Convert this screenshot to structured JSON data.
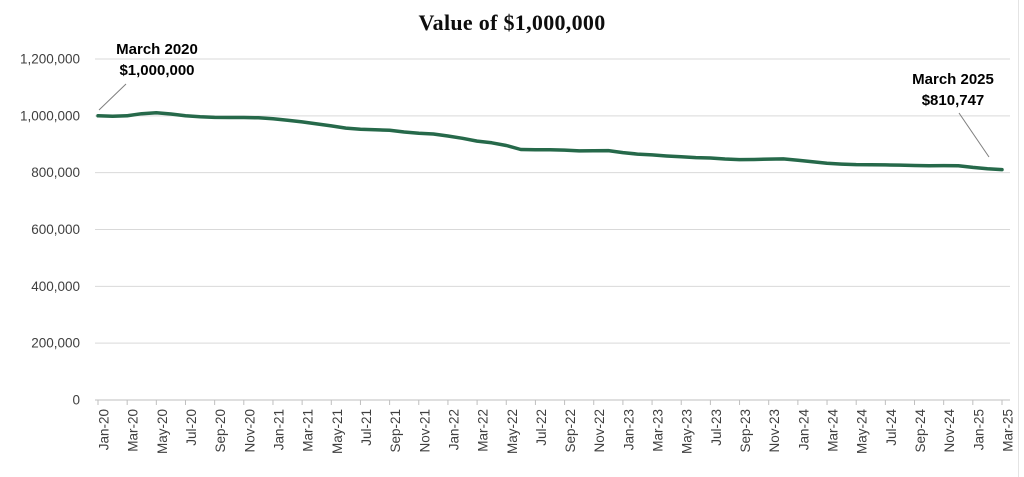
{
  "chart_data": {
    "type": "line",
    "title": "Value of $1,000,000",
    "x": [
      "Jan-20",
      "Feb-20",
      "Mar-20",
      "Apr-20",
      "May-20",
      "Jun-20",
      "Jul-20",
      "Aug-20",
      "Sep-20",
      "Oct-20",
      "Nov-20",
      "Dec-20",
      "Jan-21",
      "Feb-21",
      "Mar-21",
      "Apr-21",
      "May-21",
      "Jun-21",
      "Jul-21",
      "Aug-21",
      "Sep-21",
      "Oct-21",
      "Nov-21",
      "Dec-21",
      "Jan-22",
      "Feb-22",
      "Mar-22",
      "Apr-22",
      "May-22",
      "Jun-22",
      "Jul-22",
      "Aug-22",
      "Sep-22",
      "Oct-22",
      "Nov-22",
      "Dec-22",
      "Jan-23",
      "Feb-23",
      "Mar-23",
      "Apr-23",
      "May-23",
      "Jun-23",
      "Jul-23",
      "Aug-23",
      "Sep-23",
      "Oct-23",
      "Nov-23",
      "Dec-23",
      "Jan-24",
      "Feb-24",
      "Mar-24",
      "Apr-24",
      "May-24",
      "Jun-24",
      "Jul-24",
      "Aug-24",
      "Sep-24",
      "Oct-24",
      "Nov-24",
      "Dec-24",
      "Jan-25",
      "Feb-25",
      "Mar-25"
    ],
    "series": [
      {
        "name": "Value of $1,000,000",
        "color": "#26694A",
        "values": [
          1000000,
          998500,
          1000000,
          1007500,
          1011000,
          1006500,
          1000500,
          996500,
          994500,
          994000,
          994000,
          993000,
          989500,
          984500,
          978500,
          971500,
          964500,
          957000,
          953000,
          951000,
          949000,
          943000,
          938500,
          936000,
          929000,
          921000,
          911000,
          905000,
          895500,
          881500,
          880500,
          880800,
          879500,
          876500,
          877000,
          877500,
          870500,
          865500,
          862500,
          858500,
          856000,
          853000,
          851500,
          848000,
          846000,
          846200,
          847600,
          848400,
          843500,
          838500,
          833000,
          830000,
          828500,
          828200,
          827200,
          826600,
          825300,
          824400,
          824800,
          824500,
          818500,
          814000,
          810747
        ]
      }
    ],
    "x_tick_labels": [
      "Jan-20",
      "Mar-20",
      "May-20",
      "Jul-20",
      "Sep-20",
      "Nov-20",
      "Jan-21",
      "Mar-21",
      "May-21",
      "Jul-21",
      "Sep-21",
      "Nov-21",
      "Jan-22",
      "Mar-22",
      "May-22",
      "Jul-22",
      "Sep-22",
      "Nov-22",
      "Jan-23",
      "Mar-23",
      "May-23",
      "Jul-23",
      "Sep-23",
      "Nov-23",
      "Jan-24",
      "Mar-24",
      "May-24",
      "Jul-24",
      "Sep-24",
      "Nov-24",
      "Jan-25",
      "Mar-25"
    ],
    "y_ticks": [
      0,
      200000,
      400000,
      600000,
      800000,
      1000000,
      1200000
    ],
    "y_tick_labels": [
      "0",
      "200,000",
      "400,000",
      "600,000",
      "800,000",
      "1,000,000",
      "1,200,000"
    ],
    "ylim": [
      0,
      1200000
    ],
    "grid": "horizontal",
    "legend": "none",
    "annotations": [
      {
        "label": "March 2020",
        "value": "$1,000,000"
      },
      {
        "label": "March 2025",
        "value": "$810,747"
      }
    ]
  },
  "colors": {
    "line": "#26694A",
    "gridline": "#D9D9D9",
    "axis": "#BFBFBF",
    "tick_label": "#3F3F3F",
    "annotation_text": "#000000",
    "leader_line": "#7F7F7F",
    "background": "#FFFFFF"
  }
}
